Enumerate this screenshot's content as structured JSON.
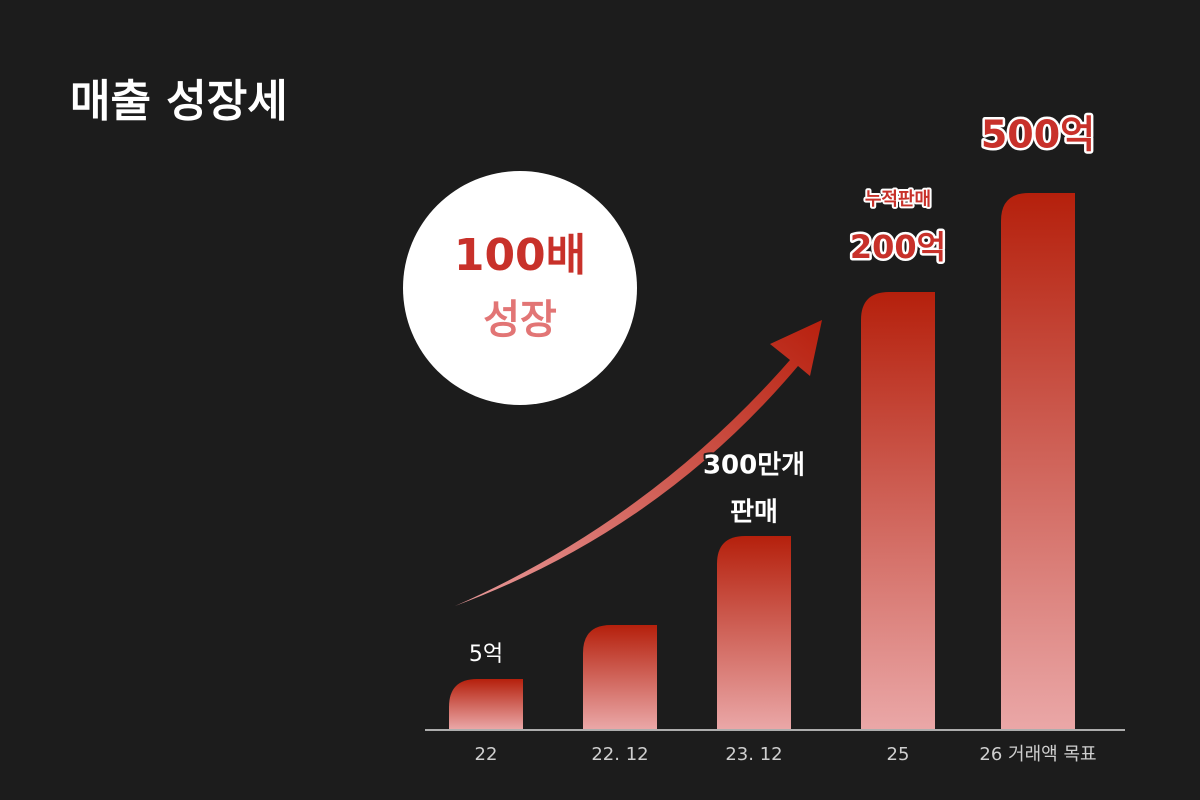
{
  "title": "매출 성장세",
  "badge": {
    "line1": "100배",
    "line2": "성장"
  },
  "bars": [
    {
      "label": "22",
      "note": [
        "5억"
      ]
    },
    {
      "label": "22. 12"
    },
    {
      "label": "23. 12",
      "note": [
        "300만개",
        "판매"
      ]
    },
    {
      "label": "25",
      "note": [
        "누적판매",
        "200억"
      ]
    },
    {
      "label": "26 거래액 목표",
      "note": [
        "500억"
      ]
    }
  ]
}
